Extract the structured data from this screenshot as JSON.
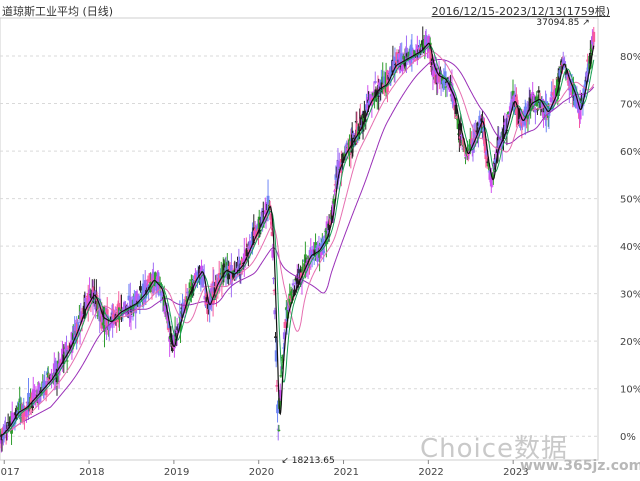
{
  "chart_data": {
    "type": "line",
    "title": "道琼斯工业平均 (日线)",
    "date_range": "2016/12/15-2023/12/13(1759根)",
    "y_axis_side": "right",
    "y_ticks": [
      "0%",
      "10%",
      "20%",
      "30%",
      "40%",
      "50%",
      "60%",
      "70%",
      "80%"
    ],
    "y_range": [
      -5,
      88
    ],
    "x_ticks": [
      "2017",
      "2018",
      "2019",
      "2020",
      "2021",
      "2022",
      "2023"
    ],
    "x_range": [
      2016.95,
      2024.0
    ],
    "annotations": {
      "high": {
        "label": "37094.85",
        "x": 2023.95,
        "y": 87
      },
      "low": {
        "label": "18213.65",
        "x": 2020.22,
        "y": -5
      }
    },
    "grid": "horizontal dashed",
    "colors": {
      "candles": [
        "#d050f0",
        "#a06ef5",
        "#6f86f5",
        "#f85a9c",
        "#2e9c2e",
        "#222222"
      ],
      "ma_short": "#111111",
      "ma_mid": "#1aa055",
      "ma_long": "#e66fb0",
      "ma_longer": "#9a30b8"
    },
    "series": [
      {
        "x": [
          2016.95,
          2017.05,
          2017.15,
          2017.25,
          2017.35,
          2017.45,
          2017.55,
          2017.65,
          2017.75,
          2017.85,
          2017.95,
          2018.05,
          2018.1,
          2018.15,
          2018.25,
          2018.35,
          2018.45,
          2018.55,
          2018.65,
          2018.75,
          2018.85,
          2018.92,
          2018.98,
          2019.05,
          2019.15,
          2019.25,
          2019.33,
          2019.4,
          2019.5,
          2019.6,
          2019.7,
          2019.8,
          2019.9,
          2020.0,
          2020.08,
          2020.13,
          2020.16,
          2020.2,
          2020.23,
          2020.27,
          2020.32,
          2020.4,
          2020.5,
          2020.6,
          2020.7,
          2020.8,
          2020.87,
          2020.92,
          2021.0,
          2021.1,
          2021.2,
          2021.3,
          2021.4,
          2021.5,
          2021.6,
          2021.7,
          2021.8,
          2021.9,
          2022.0,
          2022.05,
          2022.1,
          2022.2,
          2022.3,
          2022.35,
          2022.45,
          2022.55,
          2022.63,
          2022.7,
          2022.75,
          2022.8,
          2022.9,
          2023.0,
          2023.1,
          2023.2,
          2023.3,
          2023.4,
          2023.5,
          2023.58,
          2023.65,
          2023.72,
          2023.78,
          2023.85,
          2023.9,
          2023.95
        ],
        "y": [
          0,
          2,
          5,
          6,
          8,
          10,
          12,
          15,
          18,
          22,
          27,
          30,
          28,
          25,
          24,
          26,
          27,
          28,
          30,
          33,
          31,
          25,
          18,
          23,
          29,
          33,
          35,
          27,
          32,
          35,
          34,
          36,
          40,
          44,
          47,
          49,
          42,
          20,
          0,
          15,
          25,
          30,
          34,
          38,
          39,
          42,
          47,
          55,
          59,
          62,
          65,
          70,
          73,
          74,
          78,
          79,
          80,
          81,
          83,
          78,
          76,
          75,
          71,
          66,
          59,
          63,
          67,
          57,
          53,
          60,
          64,
          71,
          66,
          70,
          71,
          68,
          72,
          79,
          75,
          72,
          68,
          74,
          79,
          84
        ]
      }
    ]
  }
}
